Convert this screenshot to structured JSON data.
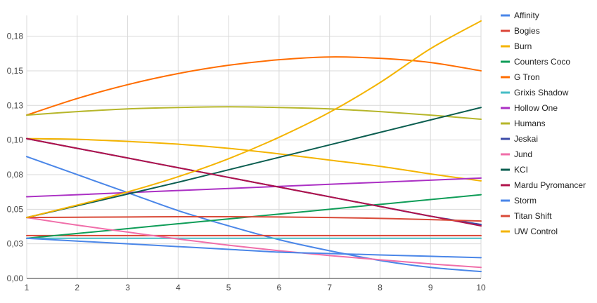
{
  "chart_data": {
    "type": "line",
    "title": "",
    "xlabel": "",
    "ylabel": "",
    "x": [
      1,
      2,
      3,
      4,
      5,
      6,
      7,
      8,
      9,
      10
    ],
    "xlim": [
      1,
      10
    ],
    "ylim": [
      0,
      0.19
    ],
    "y_ticks": [
      {
        "value": 0,
        "label": "0,00"
      },
      {
        "value": 0.025,
        "label": "0,03"
      },
      {
        "value": 0.05,
        "label": "0,05"
      },
      {
        "value": 0.075,
        "label": "0,08"
      },
      {
        "value": 0.1,
        "label": "0,10"
      },
      {
        "value": 0.125,
        "label": "0,13"
      },
      {
        "value": 0.15,
        "label": "0,15"
      },
      {
        "value": 0.175,
        "label": "0,18"
      }
    ],
    "x_tick_labels": [
      "1",
      "2",
      "3",
      "4",
      "5",
      "6",
      "7",
      "8",
      "9",
      "10"
    ],
    "grid": true,
    "legend_position": "right",
    "series": [
      {
        "name": "Affinity",
        "color": "#4a86e8",
        "values": [
          0.088,
          0.075,
          0.062,
          0.049,
          0.038,
          0.028,
          0.02,
          0.013,
          0.008,
          0.005
        ]
      },
      {
        "name": "Bogies",
        "color": "#db4437",
        "values": [
          0.031,
          0.031,
          0.031,
          0.031,
          0.031,
          0.031,
          0.031,
          0.031,
          0.031,
          0.031
        ]
      },
      {
        "name": "Burn",
        "color": "#f4b400",
        "values": [
          0.101,
          0.1005,
          0.099,
          0.097,
          0.094,
          0.09,
          0.0855,
          0.081,
          0.0755,
          0.0705
        ]
      },
      {
        "name": "Counters Coco",
        "color": "#0f9d58",
        "values": [
          0.029,
          0.0325,
          0.036,
          0.0395,
          0.043,
          0.0465,
          0.05,
          0.0535,
          0.057,
          0.0605
        ]
      },
      {
        "name": "G Tron",
        "color": "#ff6d00",
        "values": [
          0.118,
          0.13,
          0.14,
          0.148,
          0.154,
          0.158,
          0.16,
          0.159,
          0.156,
          0.15
        ]
      },
      {
        "name": "Grixis Shadow",
        "color": "#46bdc6",
        "values": [
          0.029,
          0.029,
          0.029,
          0.029,
          0.029,
          0.029,
          0.029,
          0.029,
          0.029,
          0.029
        ]
      },
      {
        "name": "Hollow One",
        "color": "#ab30c4",
        "values": [
          0.059,
          0.0605,
          0.062,
          0.0635,
          0.065,
          0.0665,
          0.068,
          0.0695,
          0.071,
          0.0725
        ]
      },
      {
        "name": "Humans",
        "color": "#b6b62a",
        "values": [
          0.118,
          0.1205,
          0.1225,
          0.1235,
          0.124,
          0.1235,
          0.1225,
          0.1205,
          0.118,
          0.115
        ]
      },
      {
        "name": "Jeskai",
        "color": "#3c4ba8",
        "values": [
          0.101,
          0.094,
          0.087,
          0.08,
          0.073,
          0.066,
          0.059,
          0.052,
          0.045,
          0.039
        ]
      },
      {
        "name": "Jund",
        "color": "#f06ea9",
        "values": [
          0.044,
          0.0385,
          0.0335,
          0.0285,
          0.024,
          0.02,
          0.0165,
          0.0135,
          0.0105,
          0.008
        ]
      },
      {
        "name": "KCI",
        "color": "#0b5e50",
        "values": [
          0.044,
          0.0525,
          0.061,
          0.0695,
          0.0785,
          0.0875,
          0.0965,
          0.1055,
          0.1145,
          0.1235
        ]
      },
      {
        "name": "Mardu Pyromancer",
        "color": "#b0124b",
        "values": [
          0.101,
          0.094,
          0.087,
          0.08,
          0.073,
          0.066,
          0.059,
          0.052,
          0.045,
          0.038
        ]
      },
      {
        "name": "Storm",
        "color": "#4a86e8",
        "values": [
          0.029,
          0.027,
          0.025,
          0.023,
          0.021,
          0.019,
          0.018,
          0.017,
          0.016,
          0.015
        ]
      },
      {
        "name": "Titan Shift",
        "color": "#d94a38",
        "values": [
          0.044,
          0.0442,
          0.0444,
          0.0446,
          0.0446,
          0.0444,
          0.044,
          0.0434,
          0.0425,
          0.0415
        ]
      },
      {
        "name": "UW Control",
        "color": "#f4b400",
        "values": [
          0.044,
          0.053,
          0.0625,
          0.0735,
          0.0865,
          0.102,
          0.12,
          0.1415,
          0.166,
          0.186
        ]
      }
    ]
  }
}
